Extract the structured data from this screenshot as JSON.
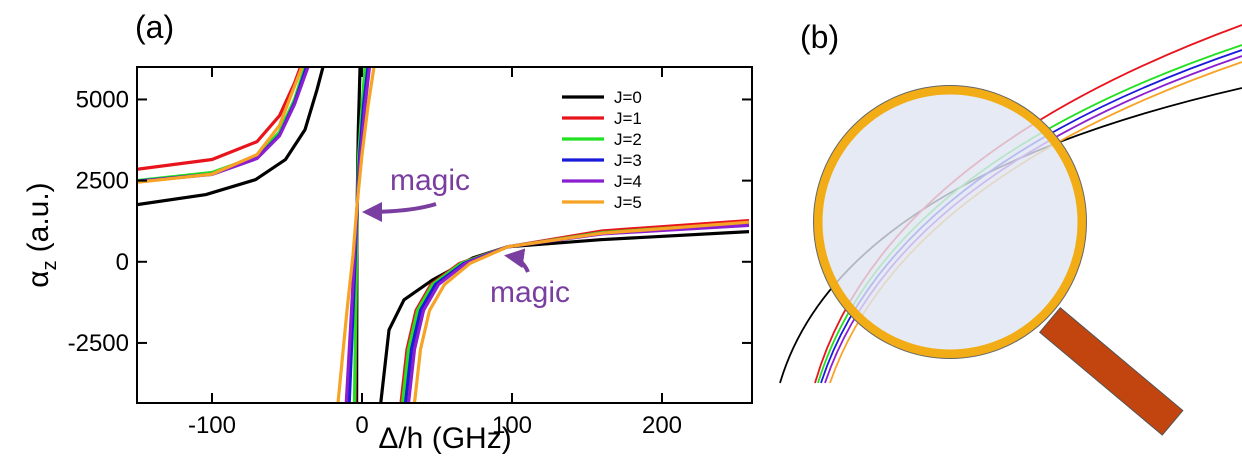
{
  "chart_data": {
    "type": "line",
    "panel_label": "(a)",
    "xlabel": "Δ/h (GHz)",
    "ylabel": {
      "symbol": "α",
      "subscript": "z",
      "unit": "(a.u.)"
    },
    "xlim": [
      -150,
      260
    ],
    "ylim": [
      -4350,
      6000
    ],
    "xticks": [
      -100,
      0,
      100,
      200
    ],
    "yticks": [
      -2500,
      0,
      2500,
      5000
    ],
    "legend": "upper right",
    "annotations": [
      "magic",
      "magic"
    ],
    "series": [
      {
        "name": "J=0",
        "color": "#000000",
        "x": [
          -150,
          -104,
          -71,
          -51,
          -38,
          -30,
          -26,
          null,
          -3.6,
          -3.4,
          -3.2,
          -2.5,
          -1.3,
          null,
          12.5,
          18,
          28,
          47,
          74,
          97,
          159,
          258
        ],
        "values": [
          1760,
          2070,
          2530,
          3150,
          4070,
          5300,
          6000,
          null,
          -4350,
          200,
          1800,
          4000,
          6000,
          null,
          -4350,
          -2100,
          -1170,
          -560,
          120,
          460,
          680,
          930
        ]
      },
      {
        "name": "J=1",
        "color": "#e8141c",
        "x": [
          -150,
          -100,
          -70,
          -55,
          -45,
          -41,
          null,
          -4.6,
          -4,
          -3.6,
          -3.2,
          -2,
          0.2,
          2.6,
          null,
          26,
          30,
          36,
          46,
          65,
          97,
          160,
          258
        ],
        "values": [
          2850,
          3150,
          3700,
          4500,
          5500,
          6000,
          null,
          -4350,
          -1500,
          200,
          1800,
          3300,
          4800,
          6000,
          null,
          -4350,
          -2700,
          -1500,
          -700,
          -50,
          460,
          950,
          1270
        ]
      },
      {
        "name": "J=2",
        "color": "#22e022",
        "x": [
          -150,
          -100,
          -70,
          -55,
          -45,
          -38,
          null,
          -5,
          -4.2,
          -3.7,
          -3.2,
          -2.2,
          0,
          2,
          null,
          27,
          31,
          37,
          47,
          66,
          97,
          160,
          258
        ],
        "values": [
          2500,
          2750,
          3250,
          4000,
          5000,
          6000,
          null,
          -4350,
          -1500,
          200,
          1800,
          3300,
          4800,
          6000,
          null,
          -4350,
          -2700,
          -1500,
          -700,
          -50,
          460,
          900,
          1200
        ]
      },
      {
        "name": "J=3",
        "color": "#1a1adb",
        "x": [
          -150,
          -100,
          -70,
          -55,
          -45,
          -37,
          null,
          -8.5,
          -6,
          -4.5,
          -3.2,
          -1.5,
          1,
          4,
          null,
          29,
          33,
          39,
          49,
          68,
          97,
          160,
          258
        ],
        "values": [
          2480,
          2700,
          3200,
          3900,
          4900,
          6000,
          null,
          -4350,
          -1500,
          200,
          1800,
          3300,
          4800,
          6000,
          null,
          -4350,
          -2700,
          -1500,
          -700,
          -50,
          460,
          880,
          1150
        ]
      },
      {
        "name": "J=4",
        "color": "#8b1fd0",
        "x": [
          -150,
          -100,
          -70,
          -55,
          -45,
          -36,
          null,
          -10.5,
          -7,
          -5,
          -3.2,
          -1,
          2,
          5,
          null,
          31,
          35,
          41,
          51,
          69,
          97,
          160,
          258
        ],
        "values": [
          2470,
          2690,
          3180,
          3880,
          4850,
          6000,
          null,
          -4350,
          -1500,
          200,
          1800,
          3300,
          4800,
          6000,
          null,
          -4350,
          -2700,
          -1500,
          -700,
          -50,
          460,
          860,
          1120
        ]
      },
      {
        "name": "J=5",
        "color": "#f7a325",
        "x": [
          -150,
          -100,
          -70,
          -55,
          -45,
          -40,
          null,
          -16,
          -10,
          -6,
          -3.2,
          0,
          4,
          8,
          null,
          35,
          39,
          45,
          55,
          72,
          97,
          160,
          258
        ],
        "values": [
          2450,
          2700,
          3300,
          4200,
          5400,
          6000,
          null,
          -4350,
          -1500,
          200,
          1800,
          3300,
          4800,
          6000,
          null,
          -4350,
          -2700,
          -1500,
          -700,
          -50,
          460,
          880,
          1220
        ]
      }
    ]
  },
  "illustration": {
    "panel_label": "(b)"
  }
}
